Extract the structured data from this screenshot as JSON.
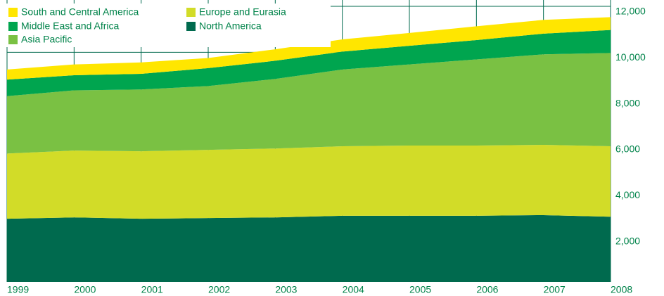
{
  "chart_data": {
    "type": "stacked_area",
    "x": [
      1999,
      2000,
      2001,
      2002,
      2003,
      2004,
      2005,
      2006,
      2007,
      2008
    ],
    "series": [
      {
        "name": "North America",
        "color": "#006a4e",
        "values": [
          2750,
          2810,
          2750,
          2780,
          2810,
          2880,
          2880,
          2880,
          2910,
          2840
        ]
      },
      {
        "name": "Europe and Eurasia",
        "color": "#d2dc28",
        "values": [
          2840,
          2910,
          2940,
          2970,
          3000,
          3030,
          3060,
          3060,
          3060,
          3070
        ]
      },
      {
        "name": "Asia Pacific",
        "color": "#7ac143",
        "values": [
          2500,
          2620,
          2690,
          2780,
          3030,
          3340,
          3530,
          3750,
          3940,
          4060
        ]
      },
      {
        "name": "Middle East and Africa",
        "color": "#00a54f",
        "values": [
          720,
          660,
          680,
          780,
          790,
          780,
          810,
          840,
          900,
          1000
        ]
      },
      {
        "name": "South and Central America",
        "color": "#ffe600",
        "values": [
          440,
          470,
          500,
          440,
          500,
          530,
          560,
          600,
          600,
          560
        ]
      }
    ],
    "ylim": [
      0,
      12000
    ],
    "yticks": [
      {
        "value": 2000,
        "label": "2,000"
      },
      {
        "value": 4000,
        "label": "4,000"
      },
      {
        "value": 6000,
        "label": "6,000"
      },
      {
        "value": 8000,
        "label": "8,000"
      },
      {
        "value": 10000,
        "label": "10,000"
      },
      {
        "value": 12000,
        "label": "12,000"
      }
    ],
    "grid": true
  }
}
